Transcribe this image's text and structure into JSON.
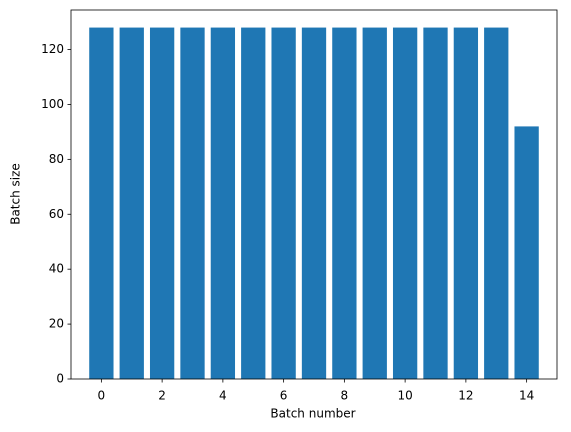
{
  "chart_data": {
    "type": "bar",
    "x": [
      0,
      1,
      2,
      3,
      4,
      5,
      6,
      7,
      8,
      9,
      10,
      11,
      12,
      13,
      14
    ],
    "values": [
      128,
      128,
      128,
      128,
      128,
      128,
      128,
      128,
      128,
      128,
      128,
      128,
      128,
      128,
      92
    ],
    "color": "#1f77b4",
    "x_label": "Batch number",
    "y_label": "Batch size",
    "xlim": [
      -1.0,
      15.0
    ],
    "xticks": [
      0,
      2,
      4,
      6,
      8,
      10,
      12,
      14
    ],
    "ylim": [
      0,
      134.4
    ],
    "yticks": [
      0,
      20,
      40,
      60,
      80,
      100,
      120
    ]
  }
}
